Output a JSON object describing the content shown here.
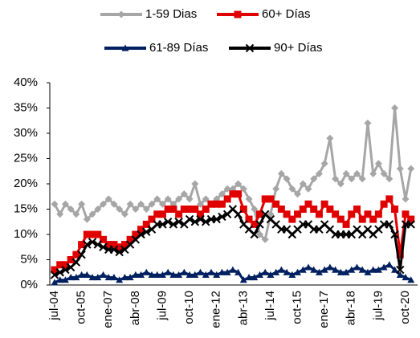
{
  "chart_data": {
    "type": "line",
    "categories": [
      "jul-04",
      null,
      null,
      null,
      null,
      "oct-05",
      null,
      null,
      null,
      null,
      "ene-07",
      null,
      null,
      null,
      null,
      "abr-08",
      null,
      null,
      null,
      null,
      "jul-09",
      null,
      null,
      null,
      null,
      "oct-10",
      null,
      null,
      null,
      null,
      "ene-12",
      null,
      null,
      null,
      null,
      "abr-13",
      null,
      null,
      null,
      null,
      "jul-14",
      null,
      null,
      null,
      null,
      "oct-15",
      null,
      null,
      null,
      null,
      "ene-17",
      null,
      null,
      null,
      null,
      "abr-18",
      null,
      null,
      null,
      null,
      "jul-19",
      null,
      null,
      null,
      null,
      "oct-20",
      null
    ],
    "series": [
      {
        "name": "1-59 Dias",
        "color": "#a6a6a6",
        "marker": "diamond",
        "values": [
          16,
          14,
          16,
          15,
          14,
          16,
          13,
          14,
          15,
          16,
          17,
          16,
          15,
          14,
          16,
          15,
          16,
          15,
          16,
          17,
          16,
          17,
          16,
          17,
          18,
          17,
          20,
          16,
          17,
          16,
          17,
          18,
          19,
          19,
          20,
          19,
          17,
          15,
          10,
          9,
          14,
          19,
          22,
          21,
          19,
          18,
          20,
          19,
          21,
          22,
          24,
          29,
          21,
          20,
          22,
          21,
          22,
          21,
          32,
          22,
          24,
          22,
          21,
          35,
          23,
          17,
          23
        ]
      },
      {
        "name": "60+ Días",
        "color": "#e00000",
        "marker": "square",
        "values": [
          3,
          4,
          4,
          5,
          6,
          8,
          10,
          10,
          10,
          9,
          8,
          8,
          7.5,
          8,
          9,
          10,
          11,
          12,
          13,
          14,
          14,
          15,
          15,
          14,
          15,
          15,
          15,
          14,
          15,
          16,
          16,
          16,
          17,
          18,
          18,
          15,
          13,
          12,
          14,
          17,
          17,
          16,
          15,
          14,
          13,
          14,
          15,
          16,
          15,
          14,
          16,
          15,
          14,
          13,
          12,
          14,
          15,
          13,
          14,
          13,
          14,
          16,
          17,
          15,
          6,
          14,
          13
        ]
      },
      {
        "name": "61-89 Días",
        "color": "#002060",
        "marker": "triangle",
        "values": [
          0.5,
          1,
          1,
          1.5,
          1.5,
          2,
          2,
          1.5,
          1.5,
          2,
          1.5,
          1.5,
          1,
          1.5,
          1.5,
          2,
          2,
          2.5,
          2,
          2,
          2,
          2.5,
          2,
          2,
          2.5,
          2,
          2,
          2.5,
          2,
          2.5,
          2,
          2.5,
          2.5,
          3,
          2.5,
          1,
          1.5,
          1.5,
          2,
          2.5,
          2,
          2.5,
          3,
          2.5,
          2,
          2.5,
          3,
          3.5,
          3,
          2.5,
          3,
          3.5,
          3,
          2.5,
          2.5,
          3,
          3.5,
          3,
          2.5,
          3,
          3,
          3.5,
          4,
          3,
          2,
          1.5,
          1
        ]
      },
      {
        "name": "90+ Días",
        "color": "#000000",
        "marker": "x",
        "values": [
          2,
          2.5,
          3,
          3.5,
          4.5,
          6,
          8,
          8.5,
          8,
          7.5,
          7,
          7,
          6.5,
          7,
          8,
          9,
          10,
          10.5,
          11,
          12,
          12,
          12.5,
          12,
          12.5,
          12,
          13,
          12.5,
          13,
          12.5,
          13,
          13,
          13.5,
          14,
          15,
          14,
          12,
          11,
          10,
          12,
          14,
          13,
          12,
          11,
          11,
          10,
          11,
          12,
          12,
          11,
          11,
          12,
          11,
          10,
          10,
          10,
          10,
          11,
          10,
          11,
          10,
          11,
          12,
          12,
          10,
          3,
          12,
          12
        ]
      }
    ],
    "ylim": [
      0,
      40
    ],
    "yticks": [
      {
        "value": 0,
        "label": "0%"
      },
      {
        "value": 5,
        "label": "5%"
      },
      {
        "value": 10,
        "label": "10%"
      },
      {
        "value": 15,
        "label": "15%"
      },
      {
        "value": 20,
        "label": "20%"
      },
      {
        "value": 25,
        "label": "25%"
      },
      {
        "value": 30,
        "label": "30%"
      },
      {
        "value": 35,
        "label": "35%"
      },
      {
        "value": 40,
        "label": "40%"
      }
    ]
  }
}
